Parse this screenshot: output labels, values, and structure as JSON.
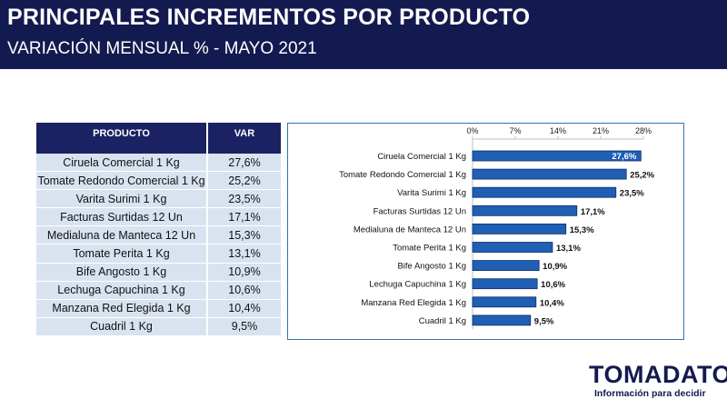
{
  "header": {
    "title": "PRINCIPALES INCREMENTOS POR PRODUCTO",
    "subtitle": "VARIACIÓN MENSUAL % - MAYO 2021"
  },
  "table": {
    "headers": [
      "PRODUCTO",
      "VAR"
    ],
    "rows": [
      {
        "producto": "Ciruela Comercial 1 Kg",
        "var": "27,6%"
      },
      {
        "producto": "Tomate Redondo Comercial 1 Kg",
        "var": "25,2%"
      },
      {
        "producto": "Varita Surimi 1 Kg",
        "var": "23,5%"
      },
      {
        "producto": "Facturas Surtidas 12 Un",
        "var": "17,1%"
      },
      {
        "producto": "Medialuna de Manteca 12 Un",
        "var": "15,3%"
      },
      {
        "producto": "Tomate Perita 1 Kg",
        "var": "13,1%"
      },
      {
        "producto": "Bife Angosto 1 Kg",
        "var": "10,9%"
      },
      {
        "producto": "Lechuga Capuchina 1 Kg",
        "var": "10,6%"
      },
      {
        "producto": "Manzana Red Elegida 1 Kg",
        "var": "10,4%"
      },
      {
        "producto": "Cuadril 1 Kg",
        "var": "9,5%"
      }
    ]
  },
  "chart_data": {
    "type": "bar",
    "orientation": "horizontal",
    "categories": [
      "Ciruela Comercial 1 Kg",
      "Tomate Redondo Comercial 1 Kg",
      "Varita Surimi 1 Kg",
      "Facturas Surtidas 12 Un",
      "Medialuna de Manteca 12 Un",
      "Tomate Perita 1 Kg",
      "Bife Angosto 1 Kg",
      "Lechuga Capuchina 1 Kg",
      "Manzana Red Elegida 1 Kg",
      "Cuadril 1 Kg"
    ],
    "values": [
      27.6,
      25.2,
      23.5,
      17.1,
      15.3,
      13.1,
      10.9,
      10.6,
      10.4,
      9.5
    ],
    "value_labels": [
      "27,6%",
      "25,2%",
      "23,5%",
      "17,1%",
      "15,3%",
      "13,1%",
      "10,9%",
      "10,6%",
      "10,4%",
      "9,5%"
    ],
    "x_ticks": [
      0,
      7,
      14,
      21,
      28
    ],
    "x_tick_labels": [
      "0%",
      "7%",
      "14%",
      "21%",
      "28%"
    ],
    "xlim": [
      0,
      28
    ],
    "axis_position": "top",
    "grid": false,
    "bar_color": "#1f5fb4",
    "bar_border_color": "#0f2d66"
  },
  "logo": {
    "name": "TOMADATO",
    "tagline": "Información para decidir"
  }
}
